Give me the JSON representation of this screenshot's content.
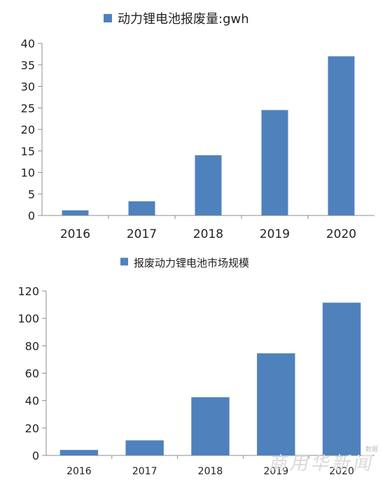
{
  "colors": {
    "bar": "#4f81bd",
    "axis": "#8c8c8c",
    "text": "#222222"
  },
  "watermark": {
    "main": "商用华新闻",
    "small": "数据"
  },
  "chart_data": [
    {
      "type": "bar",
      "title": "",
      "legend": "动力锂电池报废量:gwh",
      "legend_position": "top",
      "categories": [
        "2016",
        "2017",
        "2018",
        "2019",
        "2020"
      ],
      "values": [
        1.2,
        3.3,
        14,
        24.5,
        37
      ],
      "ylim": [
        0,
        40
      ],
      "yticks": [
        0,
        5,
        10,
        15,
        20,
        25,
        30,
        35,
        40
      ],
      "grid": false
    },
    {
      "type": "bar",
      "title": "",
      "legend": "报废动力锂电池市场规模",
      "legend_position": "top",
      "categories": [
        "2016",
        "2017",
        "2018",
        "2019",
        "2020"
      ],
      "values": [
        4,
        11,
        42.5,
        74.5,
        111.5
      ],
      "ylim": [
        0,
        120
      ],
      "yticks": [
        0,
        20,
        40,
        60,
        80,
        100,
        120
      ],
      "grid": false
    }
  ]
}
